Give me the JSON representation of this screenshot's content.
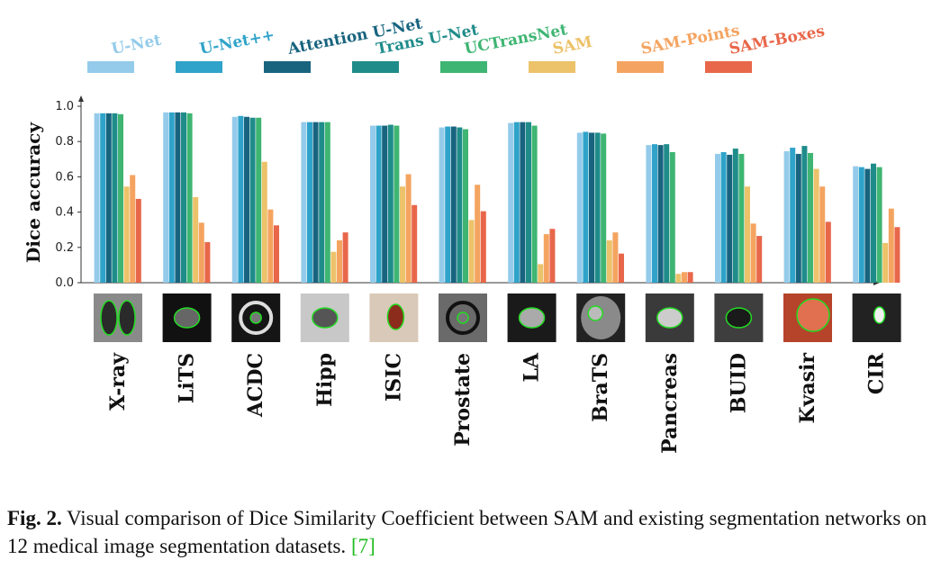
{
  "chart_data": {
    "type": "bar",
    "ylabel": "Dice accuracy",
    "xlabel": "",
    "ylim": [
      0,
      1.05
    ],
    "yticks": [
      "0.0",
      "0.2",
      "0.4",
      "0.6",
      "0.8",
      "1.0"
    ],
    "legend_position": "top",
    "grid": false,
    "categories": [
      "X-ray",
      "LiTS",
      "ACDC",
      "Hipp",
      "ISIC",
      "Prostate",
      "LA",
      "BraTS",
      "Pancreas",
      "BUID",
      "Kvasir",
      "CIR"
    ],
    "series": [
      {
        "name": "U-Net",
        "color": "#94cbea",
        "values": [
          0.96,
          0.965,
          0.94,
          0.91,
          0.89,
          0.88,
          0.905,
          0.85,
          0.78,
          0.73,
          0.745,
          0.66
        ]
      },
      {
        "name": "U-Net++",
        "color": "#2fa3c9",
        "values": [
          0.96,
          0.965,
          0.945,
          0.91,
          0.89,
          0.885,
          0.91,
          0.855,
          0.785,
          0.74,
          0.765,
          0.655
        ]
      },
      {
        "name": "Attention U-Net",
        "color": "#18647f",
        "values": [
          0.96,
          0.965,
          0.94,
          0.91,
          0.89,
          0.885,
          0.91,
          0.85,
          0.78,
          0.725,
          0.73,
          0.645
        ]
      },
      {
        "name": "Trans U-Net",
        "color": "#1f8c8a",
        "values": [
          0.96,
          0.965,
          0.935,
          0.91,
          0.895,
          0.88,
          0.91,
          0.85,
          0.785,
          0.76,
          0.775,
          0.675
        ]
      },
      {
        "name": "UCTransNet",
        "color": "#3fb573",
        "values": [
          0.955,
          0.96,
          0.935,
          0.91,
          0.89,
          0.87,
          0.89,
          0.845,
          0.74,
          0.73,
          0.735,
          0.655
        ]
      },
      {
        "name": "SAM",
        "color": "#ecc26a",
        "values": [
          0.545,
          0.485,
          0.685,
          0.175,
          0.545,
          0.355,
          0.105,
          0.24,
          0.05,
          0.545,
          0.645,
          0.225
        ]
      },
      {
        "name": "SAM-Points",
        "color": "#f4a460",
        "values": [
          0.61,
          0.34,
          0.415,
          0.24,
          0.615,
          0.555,
          0.275,
          0.285,
          0.06,
          0.335,
          0.545,
          0.42
        ]
      },
      {
        "name": "SAM-Boxes",
        "color": "#e8674a",
        "values": [
          0.475,
          0.23,
          0.325,
          0.285,
          0.44,
          0.405,
          0.305,
          0.165,
          0.06,
          0.265,
          0.345,
          0.315
        ]
      }
    ]
  },
  "caption": {
    "fig_label": "Fig. 2.",
    "text": " Visual comparison of Dice Similarity Coefficient between SAM and existing segmentation networks on 12 medical image segmentation datasets. ",
    "ref": "[7]"
  }
}
